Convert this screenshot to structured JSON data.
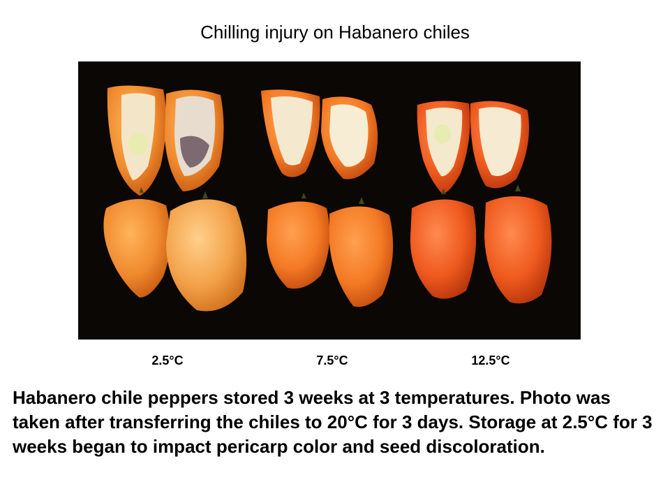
{
  "slide": {
    "title": "Chilling injury on Habanero chiles",
    "photo": {
      "subject": "habanero-chile-peppers",
      "background_color": "#0b0705",
      "pepper_colors": [
        "#f08a2e",
        "#f3a24a",
        "#f47a24",
        "#ef5a1e"
      ]
    },
    "temperatures": [
      "2.5°C",
      "7.5°C",
      "12.5°C"
    ],
    "caption": "Habanero chile peppers stored 3 weeks at 3 temperatures. Photo was taken after transferring the chiles to 20°C for 3 days. Storage at 2.5°C for 3 weeks began to impact pericarp color and seed discoloration."
  }
}
